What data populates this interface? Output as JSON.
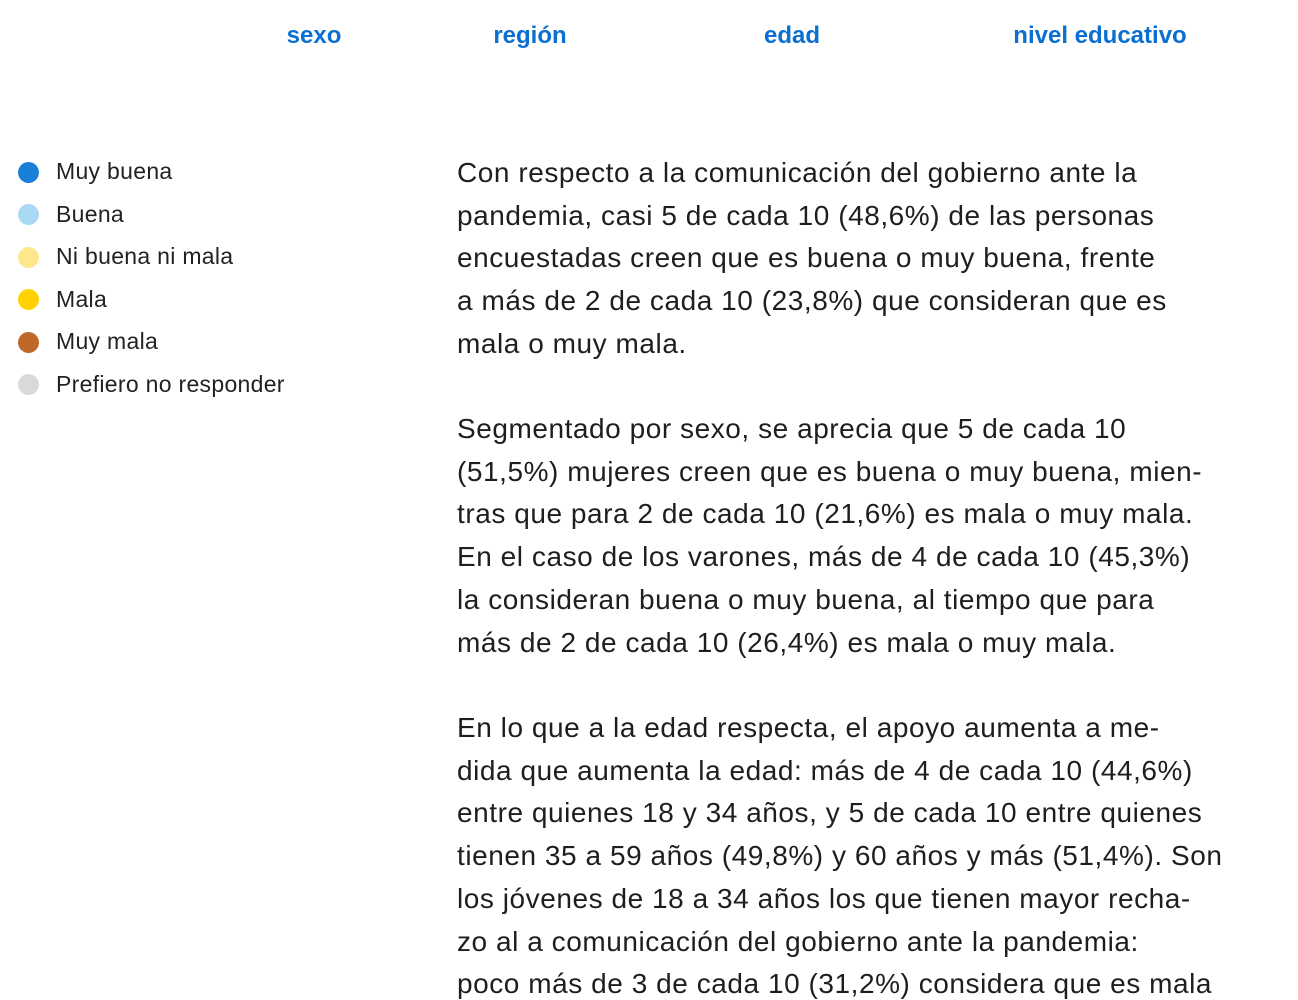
{
  "tabs": [
    "sexo",
    "región",
    "edad",
    "nivel educativo"
  ],
  "legend": [
    {
      "label": "Muy buena",
      "color": "#1a7fd6"
    },
    {
      "label": "Buena",
      "color": "#a9d9f5"
    },
    {
      "label": "Ni buena ni mala",
      "color": "#fde68c"
    },
    {
      "label": "Mala",
      "color": "#ffd200"
    },
    {
      "label": "Muy mala",
      "color": "#c0682a"
    },
    {
      "label": "Prefiero no responder",
      "color": "#d9d9d9"
    }
  ],
  "paragraphs": [
    [
      "Con respecto a la comunicación del gobierno ante la",
      "pandemia, casi 5 de cada 10 (48,6%) de las personas",
      "encuestadas creen que es buena o muy buena, frente",
      "a más de 2 de cada 10 (23,8%) que consideran que es",
      "mala o muy mala."
    ],
    [
      "Segmentado por sexo, se aprecia que 5 de cada 10",
      "(51,5%) mujeres creen que es buena o muy buena, mien-",
      "tras que para 2 de cada 10 (21,6%) es mala o muy mala.",
      "En el caso de los varones, más de 4 de cada 10 (45,3%)",
      "la consideran buena o muy buena, al tiempo que para",
      "más de 2 de cada 10 (26,4%) es mala o muy mala."
    ],
    [
      "En lo que a la edad respecta, el apoyo aumenta a me-",
      "dida que aumenta la edad: más de 4 de cada 10 (44,6%)",
      "entre quienes 18 y 34 años, y 5 de cada 10 entre quienes",
      "tienen 35 a 59 años (49,8%) y 60 años y más (51,4%). Son",
      "los jóvenes de 18 a 34 años los que tienen mayor recha-",
      "zo al a comunicación del gobierno ante la pandemia:",
      "poco más de 3 de cada 10 (31,2%) considera que es mala"
    ]
  ]
}
